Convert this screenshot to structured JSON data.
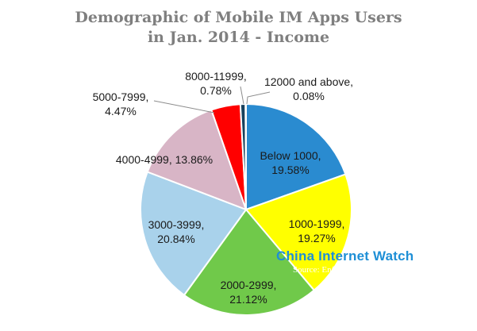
{
  "chart_data": {
    "type": "pie",
    "title_lines": [
      "Demographic of Mobile IM Apps Users",
      "in Jan. 2014 - Income"
    ],
    "slices": [
      {
        "category": "Below 1000",
        "value": 19.58,
        "label": "Below 1000,",
        "pct": "19.58%",
        "color": "#2a8bd0"
      },
      {
        "category": "1000-1999",
        "value": 19.27,
        "label": "1000-1999,",
        "pct": "19.27%",
        "color": "#ffff00"
      },
      {
        "category": "2000-2999",
        "value": 21.12,
        "label": "2000-2999,",
        "pct": "21.12%",
        "color": "#70c94a"
      },
      {
        "category": "3000-3999",
        "value": 20.84,
        "label": "3000-3999,",
        "pct": "20.84%",
        "color": "#a9d2eb"
      },
      {
        "category": "4000-4999",
        "value": 13.86,
        "label": "4000-4999, 13.86%",
        "pct": "",
        "color": "#d8b5c6"
      },
      {
        "category": "5000-7999",
        "value": 4.47,
        "label": "5000-7999,",
        "pct": "4.47%",
        "color": "#ff0000"
      },
      {
        "category": "8000-11999",
        "value": 0.78,
        "label": "8000-11999,",
        "pct": "0.78%",
        "color": "#17405c"
      },
      {
        "category": "12000 and above",
        "value": 0.08,
        "label": "12000 and above,",
        "pct": "0.08%",
        "color": "#5b8fb8"
      }
    ]
  },
  "watermark": {
    "brand": "China Internet Watch",
    "source": "Source: Enfodest, 2014"
  }
}
